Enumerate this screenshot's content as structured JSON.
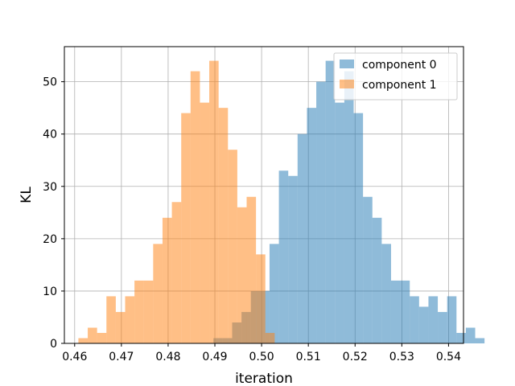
{
  "chart_data": {
    "type": "histogram",
    "title": "",
    "xlabel": "iteration",
    "ylabel": "KL",
    "xlim": [
      0.4578,
      0.5432
    ],
    "ylim": [
      0,
      56.7
    ],
    "xticks": [
      0.46,
      0.47,
      0.48,
      0.49,
      0.5,
      0.51,
      0.52,
      0.53,
      0.54
    ],
    "xtick_labels": [
      "0.46",
      "0.47",
      "0.48",
      "0.49",
      "0.50",
      "0.51",
      "0.52",
      "0.53",
      "0.54"
    ],
    "yticks": [
      0,
      10,
      20,
      30,
      40,
      50
    ],
    "ytick_labels": [
      "0",
      "10",
      "20",
      "30",
      "40",
      "50"
    ],
    "grid": true,
    "legend_position": "top-right",
    "alpha": 0.5,
    "series": [
      {
        "name": "component 0",
        "color": "#1f77b4",
        "bin_start": 0.4897,
        "bin_width": 0.002,
        "counts": [
          1,
          1,
          4,
          6,
          10,
          10,
          19,
          33,
          32,
          40,
          45,
          50,
          54,
          46,
          52,
          44,
          28,
          24,
          19,
          12,
          12,
          9,
          7,
          9,
          6,
          9,
          2,
          3,
          1
        ]
      },
      {
        "name": "component 1",
        "color": "#ff7f0e",
        "bin_start": 0.4608,
        "bin_width": 0.002,
        "counts": [
          1,
          3,
          2,
          9,
          6,
          9,
          12,
          12,
          19,
          24,
          27,
          44,
          52,
          46,
          54,
          45,
          37,
          26,
          28,
          17,
          2
        ]
      }
    ]
  }
}
